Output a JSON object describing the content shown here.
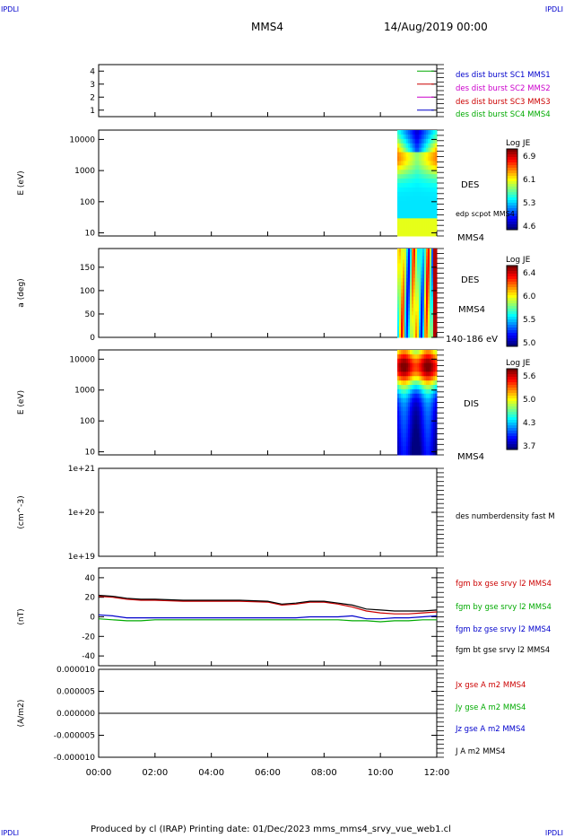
{
  "corner_labels": {
    "top_left": "IPDLI",
    "top_right": "IPDLI",
    "bottom_left": "IPDLI",
    "bottom_right": "IPDLI"
  },
  "header": {
    "title": "MMS4",
    "date": "14/Aug/2019 00:00"
  },
  "footer": {
    "text": "Produced by cl (IRAP)   Printing date: 01/Dec/2023   mms_mms4_srvy_vue_web1.cl"
  },
  "colors": {
    "blue": "#0000cc",
    "magenta": "#cc00cc",
    "red": "#cc0000",
    "green": "#00aa00",
    "black": "#000000"
  },
  "chart_data": [
    {
      "type": "line",
      "panel": "burst availability",
      "ylim": [
        0.5,
        4.5
      ],
      "yticks": [
        "1",
        "2",
        "3",
        "4"
      ],
      "series": [
        {
          "name": "des dist burst SC1 MMS1",
          "color": "#0000cc",
          "y": 1
        },
        {
          "name": "des dist burst SC2 MMS2",
          "color": "#cc00cc",
          "y": 2
        },
        {
          "name": "des dist burst SC3 MMS3",
          "color": "#cc0000",
          "y": 3
        },
        {
          "name": "des dist burst SC4 MMS4",
          "color": "#00aa00",
          "y": 4
        }
      ]
    },
    {
      "type": "heatmap",
      "panel": "electron energy spectrogram",
      "ylabel": "E (eV)",
      "yscale": "log",
      "yticks": [
        "10",
        "100",
        "1000",
        "10000"
      ],
      "side_labels": [
        "DES",
        "edp scpot MMS4",
        "MMS4"
      ],
      "colorbar": {
        "title": "Log JE",
        "ticks": [
          "6.9",
          "6.1",
          "5.3",
          "4.6"
        ]
      },
      "data_start_hour": 10.6
    },
    {
      "type": "heatmap",
      "panel": "electron pitch angle",
      "ylabel": "a (deg)",
      "yticks": [
        "0",
        "50",
        "100",
        "150"
      ],
      "side_labels": [
        "DES",
        "MMS4",
        "140-186 eV"
      ],
      "colorbar": {
        "title": "Log JE",
        "ticks": [
          "6.4",
          "6.0",
          "5.5",
          "5.0"
        ]
      },
      "data_start_hour": 10.6
    },
    {
      "type": "heatmap",
      "panel": "ion energy spectrogram",
      "ylabel": "E (eV)",
      "yscale": "log",
      "yticks": [
        "10",
        "100",
        "1000",
        "10000"
      ],
      "side_labels": [
        "DIS",
        "MMS4"
      ],
      "colorbar": {
        "title": "Log JE",
        "ticks": [
          "5.6",
          "5.0",
          "4.3",
          "3.7"
        ]
      },
      "data_start_hour": 10.6
    },
    {
      "type": "line",
      "panel": "density",
      "ylabel": "(cm^-3)",
      "yscale": "log",
      "yticks": [
        "1e+19",
        "1e+20",
        "1e+21"
      ],
      "legend": [
        "des numberdensity fast M"
      ]
    },
    {
      "type": "line",
      "panel": "magnetic field",
      "ylabel": "(nT)",
      "ylim": [
        -50,
        50
      ],
      "yticks": [
        "-40",
        "-20",
        "0",
        "20",
        "40"
      ],
      "x": [
        0,
        0.5,
        1,
        1.5,
        2,
        3,
        4,
        5,
        6,
        6.5,
        7,
        7.5,
        8,
        8.5,
        9,
        9.5,
        10,
        10.5,
        11,
        11.5,
        12
      ],
      "series": [
        {
          "name": "fgm bx gse srvy l2 MMS4",
          "color": "#cc0000",
          "values": [
            21,
            20,
            18,
            17,
            17,
            16,
            16,
            16,
            15,
            12,
            13,
            15,
            15,
            13,
            10,
            6,
            4,
            3,
            3,
            4,
            5
          ]
        },
        {
          "name": "fgm by gse srvy l2 MMS4",
          "color": "#00aa00",
          "values": [
            -2,
            -3,
            -4,
            -4,
            -3,
            -3,
            -3,
            -3,
            -3,
            -3,
            -3,
            -3,
            -3,
            -3,
            -4,
            -4,
            -5,
            -4,
            -4,
            -3,
            -3
          ]
        },
        {
          "name": "fgm bz gse srvy l2 MMS4",
          "color": "#0000cc",
          "values": [
            2,
            1,
            -1,
            -1,
            -1,
            -1,
            -1,
            -1,
            -1,
            -1,
            -1,
            0,
            0,
            0,
            1,
            -2,
            -2,
            -1,
            -1,
            0,
            1
          ]
        },
        {
          "name": "fgm bt gse srvy l2 MMS4",
          "color": "#000000",
          "values": [
            22,
            21,
            19,
            18,
            18,
            17,
            17,
            17,
            16,
            13,
            14,
            16,
            16,
            14,
            12,
            8,
            7,
            6,
            6,
            6,
            7
          ]
        }
      ]
    },
    {
      "type": "line",
      "panel": "current density",
      "ylabel": "(A/m2)",
      "ylim": [
        -1e-05,
        1e-05
      ],
      "yticks": [
        "-0.000010",
        "-0.000005",
        "0.000000",
        "0.000005",
        "0.000010"
      ],
      "series": [
        {
          "name": "Jx gse A m2 MMS4",
          "color": "#cc0000"
        },
        {
          "name": "Jy gse A m2 MMS4",
          "color": "#00aa00"
        },
        {
          "name": "Jz gse A m2 MMS4",
          "color": "#0000cc"
        },
        {
          "name": "J A m2 MMS4",
          "color": "#000000"
        }
      ]
    }
  ],
  "xaxis": {
    "ticks": [
      "00:00",
      "02:00",
      "04:00",
      "06:00",
      "08:00",
      "10:00",
      "12:00"
    ],
    "range_hours": [
      0,
      12
    ]
  }
}
